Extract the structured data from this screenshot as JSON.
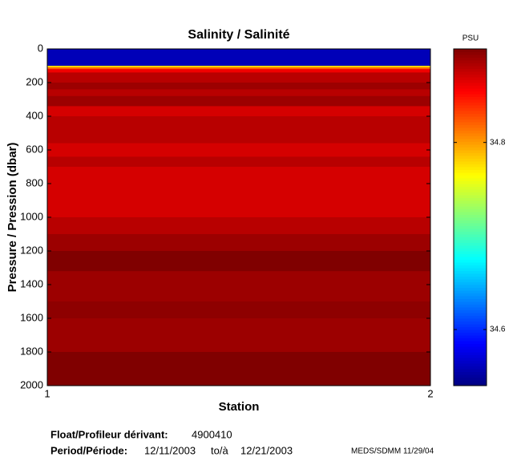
{
  "chart_data": {
    "type": "heatmap",
    "title": "Salinity / Salinité",
    "x_label": "Station",
    "y_label": "Pressure / Pression (dbar)",
    "xlim": [
      1,
      2
    ],
    "xticks": [
      1,
      2
    ],
    "ylim": [
      0,
      2000
    ],
    "yticks": [
      0,
      200,
      400,
      600,
      800,
      1000,
      1200,
      1400,
      1600,
      1800,
      2000
    ],
    "y_reversed": true,
    "pressure_bins": [
      0,
      100,
      110,
      120,
      140,
      200,
      240,
      280,
      340,
      400,
      560,
      640,
      700,
      1000,
      1100,
      1200,
      1320,
      1500,
      1600,
      1800,
      2000
    ],
    "values": [
      34.56,
      34.78,
      34.82,
      34.86,
      34.88,
      34.89,
      34.88,
      34.89,
      34.87,
      34.88,
      34.87,
      34.88,
      34.87,
      34.88,
      34.89,
      34.9,
      34.89,
      34.895,
      34.89,
      34.9
    ],
    "colormap": "jet",
    "colorbar_label": "PSU",
    "clim": [
      34.54,
      34.9
    ],
    "cticks": [
      34.6,
      34.8
    ]
  },
  "footer": {
    "float_label": "Float/Profileur dérivant:",
    "float_id": "4900410",
    "period_label": "Period/Période:",
    "start": "12/11/2003",
    "to": "to/à",
    "end": "12/21/2003",
    "credit": "MEDS/SDMM  11/29/04"
  }
}
